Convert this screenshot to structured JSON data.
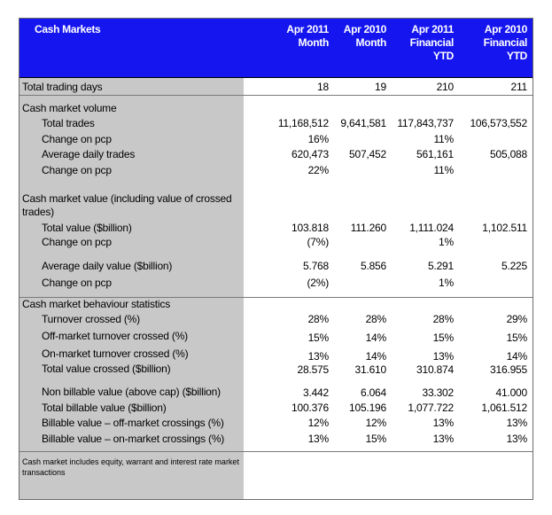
{
  "header": {
    "title": "Cash Markets",
    "cols": [
      {
        "l1": "Apr  2011",
        "l2": "Month",
        "l3": ""
      },
      {
        "l1": "Apr 2010",
        "l2": "Month",
        "l3": ""
      },
      {
        "l1": "Apr 2011",
        "l2": "Financial",
        "l3": "YTD"
      },
      {
        "l1": "Apr 2010",
        "l2": "Financial",
        "l3": "YTD"
      }
    ]
  },
  "rows": {
    "trading_days": {
      "label": "Total trading days",
      "v": [
        "18",
        "19",
        "210",
        "211"
      ]
    },
    "volume_head": {
      "label": "Cash market volume"
    },
    "total_trades": {
      "label": "Total trades",
      "v": [
        "11,168,512",
        "9,641,581",
        "117,843,737",
        "106,573,552"
      ]
    },
    "tt_change": {
      "label": "Change on pcp",
      "v": [
        "16%",
        "",
        "11%",
        ""
      ]
    },
    "avg_trades": {
      "label": "Average daily trades",
      "v": [
        "620,473",
        "507,452",
        "561,161",
        "505,088"
      ]
    },
    "at_change": {
      "label": "Change on pcp",
      "v": [
        "22%",
        "",
        "11%",
        ""
      ]
    },
    "value_head": {
      "label": "Cash market value (including value of  crossed trades)"
    },
    "total_value": {
      "label": "Total value ($billion)",
      "v": [
        "103.818",
        "111.260",
        "1,111.024",
        "1,102.511"
      ]
    },
    "tv_change": {
      "label": "Change on pcp",
      "v": [
        "(7%)",
        "",
        "1%",
        ""
      ]
    },
    "avg_value": {
      "label": "Average daily value ($billion)",
      "v": [
        "5.768",
        "5.856",
        "5.291",
        "5.225"
      ]
    },
    "av_change": {
      "label": "Change on pcp",
      "v": [
        "(2%)",
        "",
        "1%",
        ""
      ]
    },
    "behaviour_head": {
      "label": "Cash market behaviour statistics"
    },
    "turnover_crossed": {
      "label": "Turnover crossed (%)",
      "v": [
        "28%",
        "28%",
        "28%",
        "29%"
      ]
    },
    "off_market": {
      "label": "Off-market turnover crossed (%)",
      "v": [
        "15%",
        "14%",
        "15%",
        "15%"
      ]
    },
    "on_market": {
      "label": "On-market turnover crossed (%)",
      "v": [
        "13%",
        "14%",
        "13%",
        "14%"
      ]
    },
    "total_value_crossed": {
      "label": "Total value crossed ($billion)",
      "v": [
        "28.575",
        "31.610",
        "310.874",
        "316.955"
      ]
    },
    "non_billable": {
      "label": "Non billable value (above cap)  ($billion)",
      "v": [
        "3.442",
        "6.064",
        "33.302",
        "41.000"
      ]
    },
    "total_billable": {
      "label": "Total billable value ($billion)",
      "v": [
        "100.376",
        "105.196",
        "1,077.722",
        "1,061.512"
      ]
    },
    "billable_off": {
      "label": "Billable value – off-market crossings (%)",
      "v": [
        "12%",
        "12%",
        "13%",
        "13%"
      ]
    },
    "billable_on": {
      "label": "Billable value – on-market crossings (%)",
      "v": [
        "13%",
        "15%",
        "13%",
        "13%"
      ]
    }
  },
  "footnote": "Cash  market  includes  equity,  warrant  and  interest  rate market transactions"
}
